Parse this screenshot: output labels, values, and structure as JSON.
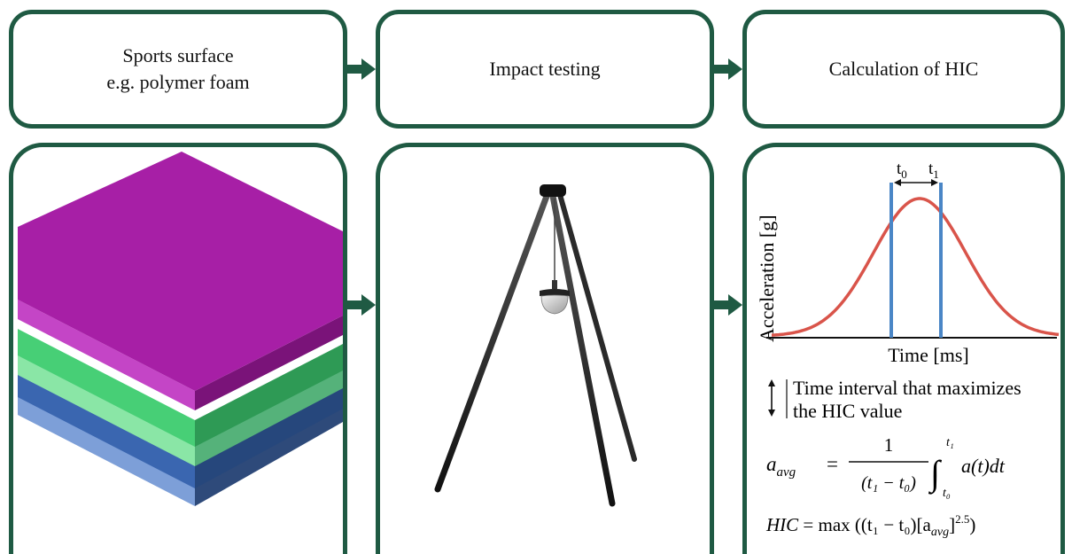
{
  "steps": {
    "surface": {
      "title_line1": "Sports surface",
      "title_line2": "e.g. polymer foam"
    },
    "impact": {
      "title": "Impact testing"
    },
    "hic": {
      "title": "Calculation of HIC"
    }
  },
  "graph": {
    "ylabel": "Acceleration [g]",
    "xlabel": "Time [ms]",
    "t0_label": "t",
    "t0_sub": "0",
    "t1_label": "t",
    "t1_sub": "1",
    "curve_color": "#d9544a",
    "interval_color": "#4a86c6"
  },
  "legend": {
    "line1": "Time interval that maximizes",
    "line2": "the HIC value"
  },
  "formulas": {
    "avg_lhs": "a",
    "avg_lhs_sub": "avg",
    "equals": "=",
    "numerator": "1",
    "denominator": "(t₁ − t₀)",
    "integral_upper": "t₁",
    "integral_lower": "t₀",
    "integrand": "a(t)dt",
    "hic_lhs": "HIC",
    "hic_rhs_1": "max ((t₁ − t₀)[a",
    "hic_rhs_sub": "avg",
    "hic_rhs_2": "]",
    "hic_exponent": "2.5",
    "hic_close": ")"
  },
  "layer_colors": {
    "magenta_top": "#a71fa6",
    "magenta_side": "#c445c6",
    "magenta_front": "#7a1379",
    "green_side": "#47cf76",
    "green_front": "#2e9a55",
    "lightgreen_side": "#8ae6a6",
    "lightgreen_front": "#55b27a",
    "blue_side": "#3a66b0",
    "blue_front": "#26477c",
    "lightblue_side": "#7d9fd8",
    "lightblue_front": "#2e4a7a"
  },
  "frame_color": "#1f5a43"
}
